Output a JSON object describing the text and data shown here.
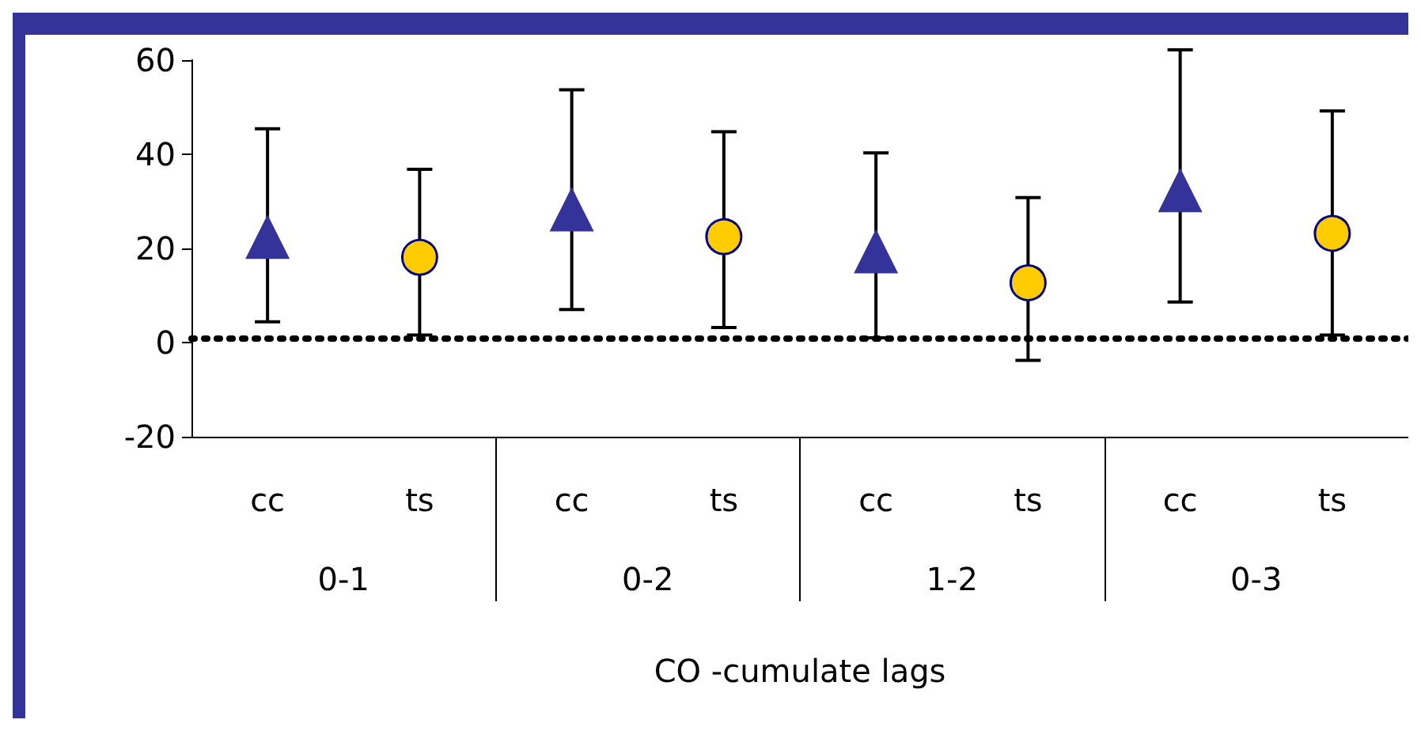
{
  "chart_data": {
    "type": "scatter",
    "xlabel": "CO -cumulate lags",
    "categories": [
      "cc",
      "ts",
      "cc",
      "ts",
      "cc",
      "ts",
      "cc",
      "ts"
    ],
    "annotations": [
      "0-1",
      "0-2",
      "1-2",
      "0-3"
    ],
    "series": [
      {
        "color": "#333399",
        "marker": "triangle",
        "values": [
          22.5,
          null,
          28.3,
          null,
          19.4,
          null,
          32.4,
          null
        ],
        "errors": [
          [
            4.4,
            45.4
          ],
          null,
          [
            7,
            53.7
          ],
          null,
          [
            1,
            40.3
          ],
          null,
          [
            8.6,
            62.2
          ],
          null
        ]
      },
      {
        "color": "#ffcc00",
        "marker": "circle",
        "values": [
          null,
          18.1,
          null,
          22.5,
          null,
          12.7,
          null,
          23.2
        ],
        "errors": [
          null,
          [
            1.6,
            36.8
          ],
          null,
          [
            3.2,
            44.8
          ],
          null,
          [
            -3.8,
            30.8
          ],
          null,
          [
            1.6,
            49.2
          ]
        ]
      }
    ],
    "ylim": [
      -20,
      60
    ],
    "yticks": [
      -20,
      0,
      20,
      40,
      60
    ],
    "ref_lines": [
      {
        "axis": "y",
        "value": 1,
        "color": "#000000",
        "line_style": "dotted"
      }
    ]
  }
}
